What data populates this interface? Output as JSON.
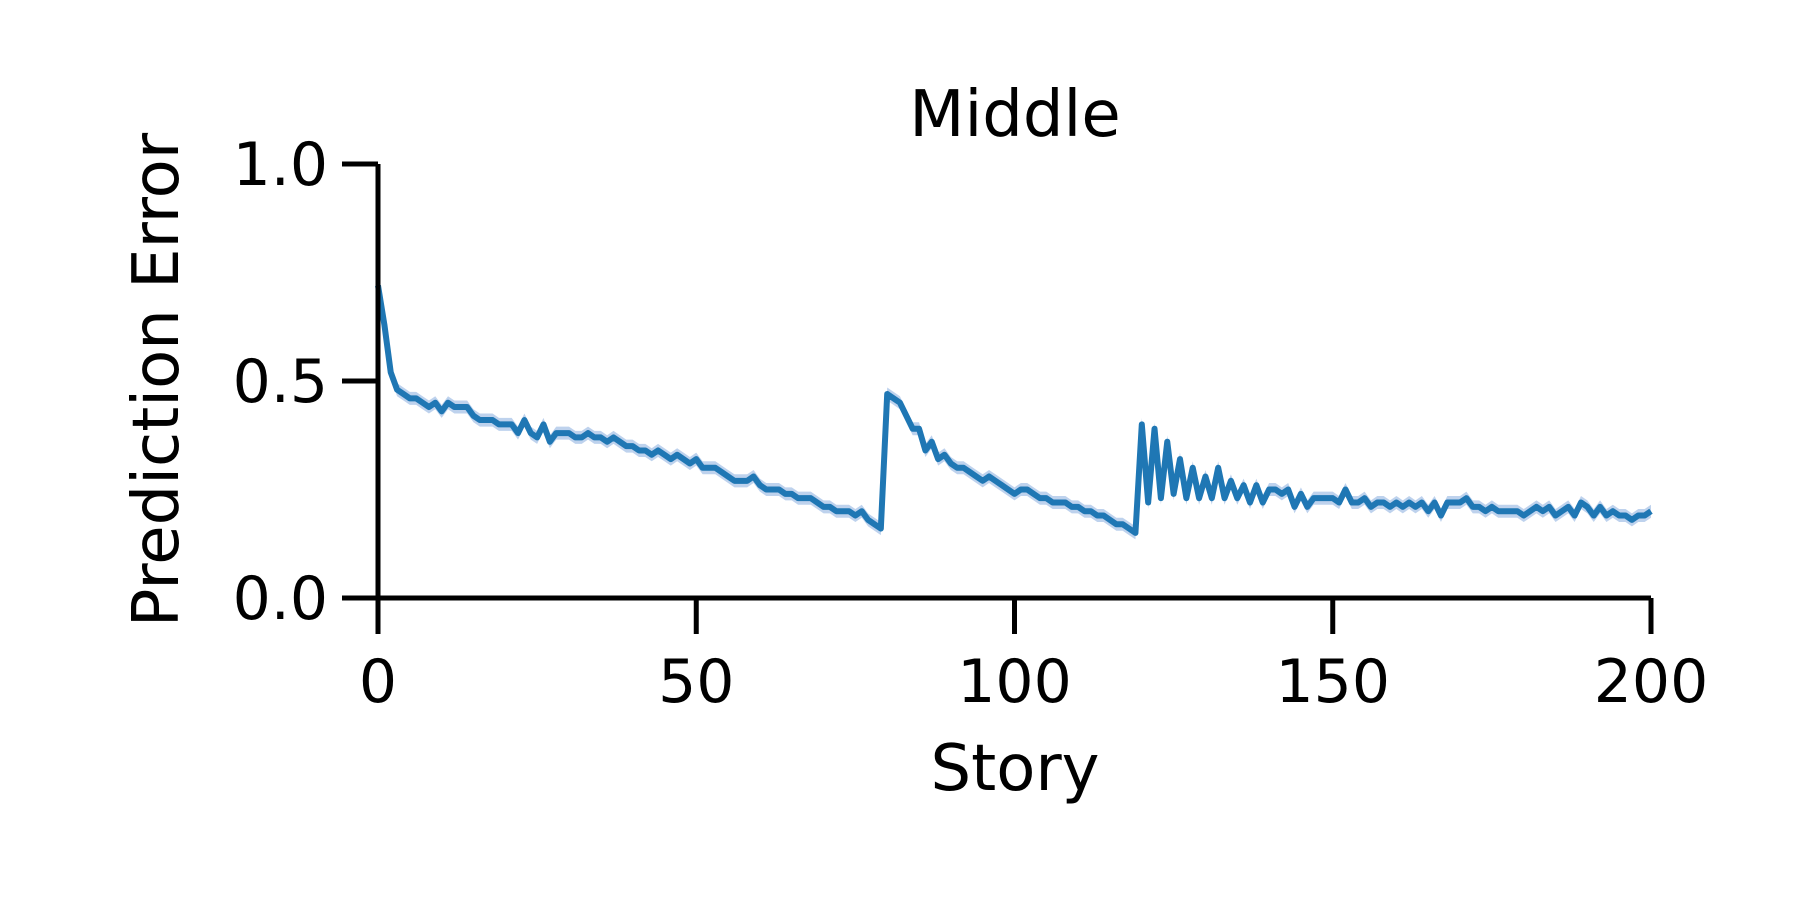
{
  "chart_data": {
    "type": "line",
    "title": "Middle",
    "x_label": "Story",
    "y_label": "Prediction Error",
    "x": [
      0,
      1,
      2,
      3,
      4,
      5,
      6,
      7,
      8,
      9,
      10,
      11,
      12,
      13,
      14,
      15,
      16,
      17,
      18,
      19,
      20,
      21,
      22,
      23,
      24,
      25,
      26,
      27,
      28,
      29,
      30,
      31,
      32,
      33,
      34,
      35,
      36,
      37,
      38,
      39,
      40,
      41,
      42,
      43,
      44,
      45,
      46,
      47,
      48,
      49,
      50,
      51,
      52,
      53,
      54,
      55,
      56,
      57,
      58,
      59,
      60,
      61,
      62,
      63,
      64,
      65,
      66,
      67,
      68,
      69,
      70,
      71,
      72,
      73,
      74,
      75,
      76,
      77,
      78,
      79,
      80,
      81,
      82,
      83,
      84,
      85,
      86,
      87,
      88,
      89,
      90,
      91,
      92,
      93,
      94,
      95,
      96,
      97,
      98,
      99,
      100,
      101,
      102,
      103,
      104,
      105,
      106,
      107,
      108,
      109,
      110,
      111,
      112,
      113,
      114,
      115,
      116,
      117,
      118,
      119,
      120,
      121,
      122,
      123,
      124,
      125,
      126,
      127,
      128,
      129,
      130,
      131,
      132,
      133,
      134,
      135,
      136,
      137,
      138,
      139,
      140,
      141,
      142,
      143,
      144,
      145,
      146,
      147,
      148,
      149,
      150,
      151,
      152,
      153,
      154,
      155,
      156,
      157,
      158,
      159,
      160,
      161,
      162,
      163,
      164,
      165,
      166,
      167,
      168,
      169,
      170,
      171,
      172,
      173,
      174,
      175,
      176,
      177,
      178,
      179,
      180,
      181,
      182,
      183,
      184,
      185,
      186,
      187,
      188,
      189,
      190,
      191,
      192,
      193,
      194,
      195,
      196,
      197,
      198,
      199,
      200
    ],
    "series": [
      {
        "color": "#1f77b4",
        "band_color": "#aec7e8",
        "error": 0.015,
        "values": [
          0.72,
          0.63,
          0.52,
          0.48,
          0.47,
          0.46,
          0.46,
          0.45,
          0.44,
          0.45,
          0.43,
          0.45,
          0.44,
          0.44,
          0.44,
          0.42,
          0.41,
          0.41,
          0.41,
          0.4,
          0.4,
          0.4,
          0.38,
          0.41,
          0.38,
          0.37,
          0.4,
          0.36,
          0.38,
          0.38,
          0.38,
          0.37,
          0.37,
          0.38,
          0.37,
          0.37,
          0.36,
          0.37,
          0.36,
          0.35,
          0.35,
          0.34,
          0.34,
          0.33,
          0.34,
          0.33,
          0.32,
          0.33,
          0.32,
          0.31,
          0.32,
          0.3,
          0.3,
          0.3,
          0.29,
          0.28,
          0.27,
          0.27,
          0.27,
          0.28,
          0.26,
          0.25,
          0.25,
          0.25,
          0.24,
          0.24,
          0.23,
          0.23,
          0.23,
          0.22,
          0.21,
          0.21,
          0.2,
          0.2,
          0.2,
          0.19,
          0.2,
          0.18,
          0.17,
          0.16,
          0.47,
          0.46,
          0.45,
          0.42,
          0.39,
          0.39,
          0.34,
          0.36,
          0.32,
          0.33,
          0.31,
          0.3,
          0.3,
          0.29,
          0.28,
          0.27,
          0.28,
          0.27,
          0.26,
          0.25,
          0.24,
          0.25,
          0.25,
          0.24,
          0.23,
          0.23,
          0.22,
          0.22,
          0.22,
          0.21,
          0.21,
          0.2,
          0.2,
          0.19,
          0.19,
          0.18,
          0.17,
          0.17,
          0.16,
          0.15,
          0.4,
          0.22,
          0.39,
          0.23,
          0.36,
          0.24,
          0.32,
          0.23,
          0.3,
          0.23,
          0.28,
          0.23,
          0.3,
          0.23,
          0.27,
          0.23,
          0.26,
          0.22,
          0.26,
          0.22,
          0.25,
          0.25,
          0.24,
          0.25,
          0.21,
          0.24,
          0.21,
          0.23,
          0.23,
          0.23,
          0.23,
          0.22,
          0.25,
          0.22,
          0.22,
          0.23,
          0.21,
          0.22,
          0.22,
          0.21,
          0.22,
          0.21,
          0.22,
          0.21,
          0.22,
          0.2,
          0.22,
          0.19,
          0.22,
          0.22,
          0.22,
          0.23,
          0.21,
          0.21,
          0.2,
          0.21,
          0.2,
          0.2,
          0.2,
          0.2,
          0.19,
          0.2,
          0.21,
          0.2,
          0.21,
          0.19,
          0.2,
          0.21,
          0.19,
          0.22,
          0.21,
          0.19,
          0.21,
          0.19,
          0.2,
          0.19,
          0.19,
          0.18,
          0.19,
          0.19,
          0.2
        ]
      }
    ],
    "xlim": [
      0,
      200
    ],
    "xticks": [
      0,
      50,
      100,
      150,
      200
    ],
    "ylim": [
      0,
      1
    ],
    "yticks": [
      {
        "value": 0,
        "label": "0.0"
      },
      0.5,
      {
        "value": 1,
        "label": "1.0"
      }
    ]
  }
}
